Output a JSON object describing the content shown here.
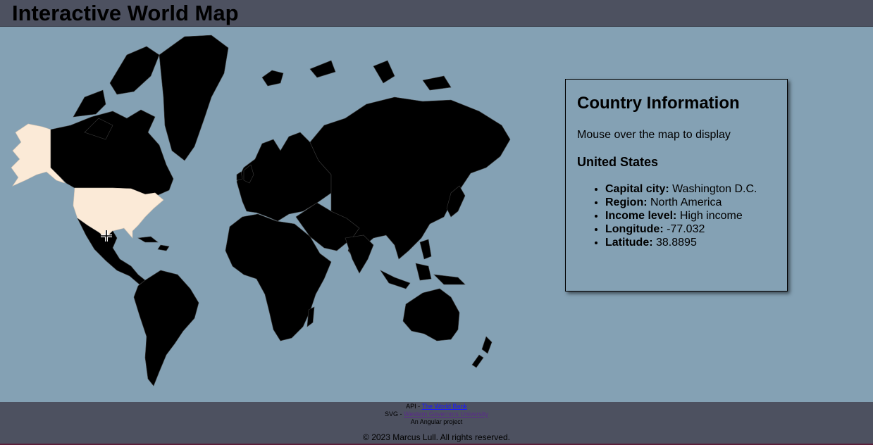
{
  "header": {
    "title": "Interactive World Map"
  },
  "map": {
    "land_color": "#000000",
    "highlight_color": "#fbead7",
    "ocean_color": "#84a1b4",
    "highlighted_country": "United States"
  },
  "info_panel": {
    "title": "Country Information",
    "prompt": "Mouse over the map to display",
    "country": "United States",
    "fields": [
      {
        "label": "Capital city:",
        "value": "Washington D.C."
      },
      {
        "label": "Region:",
        "value": "North America"
      },
      {
        "label": "Income level:",
        "value": "High income"
      },
      {
        "label": "Longitude:",
        "value": "-77.032"
      },
      {
        "label": "Latitude:",
        "value": "38.8895"
      }
    ]
  },
  "footer": {
    "api_prefix": "API - ",
    "api_link": "The World Bank",
    "svg_prefix": "SVG - ",
    "svg_link": "Western Governors University",
    "project": "An Angular project",
    "copyright": "© 2023 Marcus Lull. All rights reserved."
  }
}
